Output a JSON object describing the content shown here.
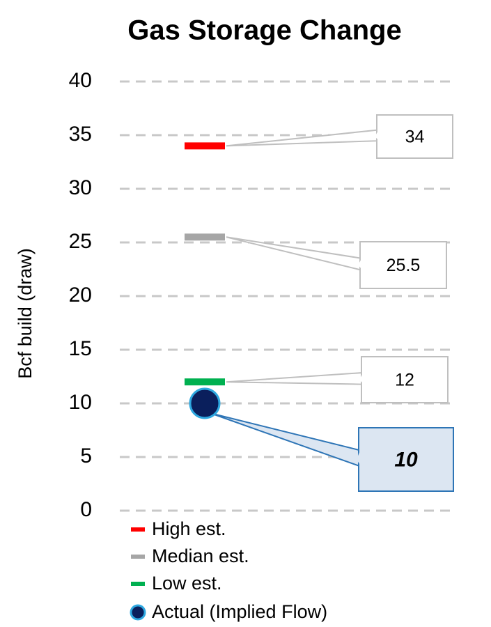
{
  "chart_data": {
    "type": "marker",
    "title": "Gas Storage Change",
    "y_label": "Bcf build (draw)",
    "ylim": [
      0,
      40
    ],
    "yticks": [
      0,
      5,
      10,
      15,
      20,
      25,
      30,
      35,
      40
    ],
    "grid": true,
    "series": [
      {
        "name": "High est.",
        "color": "#ff0000",
        "marker": "dash",
        "values": [
          34
        ]
      },
      {
        "name": "Median est.",
        "color": "#a6a6a6",
        "marker": "dash",
        "values": [
          25.5
        ]
      },
      {
        "name": "Low est.",
        "color": "#00b050",
        "marker": "dash",
        "values": [
          12
        ]
      },
      {
        "name": "Actual (Implied Flow)",
        "color": "#0a1f5c",
        "marker": "circle",
        "values": [
          10
        ]
      }
    ]
  }
}
